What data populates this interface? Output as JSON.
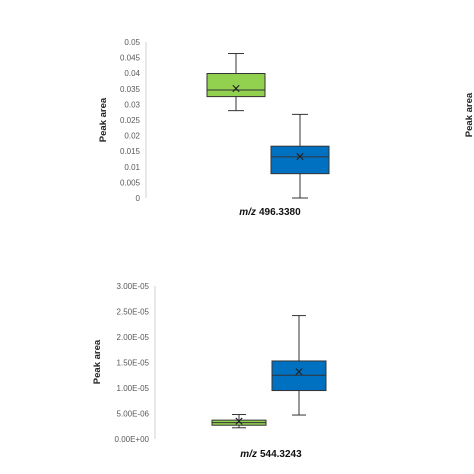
{
  "chart_data": [
    {
      "type": "box",
      "ylabel": "Peak area",
      "xlabel_italic": "m/z",
      "xlabel_value": "496.3380",
      "ylim": [
        0,
        0.05
      ],
      "ticks": [
        "0",
        "0.005",
        "0.01",
        "0.015",
        "0.02",
        "0.025",
        "0.03",
        "0.035",
        "0.04",
        "0.045",
        "0.05"
      ],
      "boxes": [
        {
          "min": 0.028,
          "q1": 0.0325,
          "median": 0.0346,
          "q3": 0.0399,
          "max": 0.0463,
          "mean": 0.0351,
          "color": "#92d050"
        },
        {
          "min": 0.0,
          "q1": 0.0078,
          "median": 0.0132,
          "q3": 0.0166,
          "max": 0.0268,
          "mean": 0.0133,
          "color": "#0070c0"
        }
      ]
    },
    {
      "type": "box",
      "ylabel": "Peak area",
      "xlabel_italic": "m/z",
      "xlabel_value": "544.3243",
      "ylim": [
        0,
        3e-05
      ],
      "ticks": [
        "0.00E+00",
        "5.00E-06",
        "1.00E-05",
        "1.50E-05",
        "2.00E-05",
        "2.50E-05",
        "3.00E-05"
      ],
      "boxes": [
        {
          "min": 2.2e-06,
          "q1": 2.7e-06,
          "median": 3.2e-06,
          "q3": 3.7e-06,
          "max": 4.8e-06,
          "mean": 3.5e-06,
          "color": "#92d050"
        },
        {
          "min": 4.7e-06,
          "q1": 9.5e-06,
          "median": 1.25e-05,
          "q3": 1.53e-05,
          "max": 2.42e-05,
          "mean": 1.32e-05,
          "color": "#0070c0"
        }
      ]
    },
    {
      "type": "box",
      "ylabel": "Peak area"
    }
  ]
}
